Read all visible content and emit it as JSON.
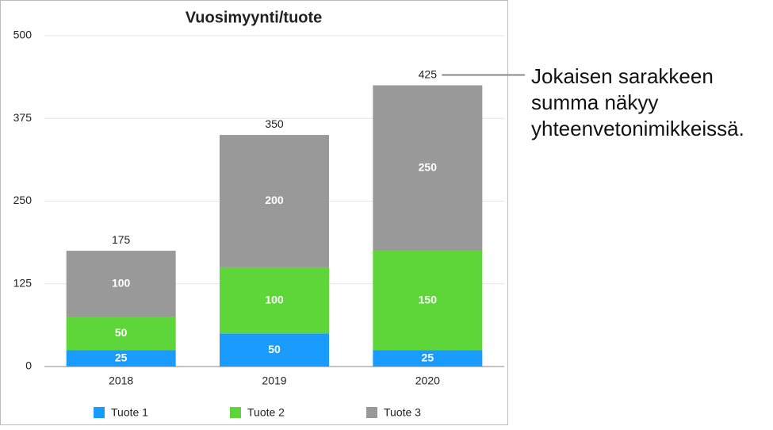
{
  "chart_data": {
    "type": "stacked_bar",
    "title": "Vuosimyynti/tuote",
    "categories": [
      "2018",
      "2019",
      "2020"
    ],
    "series": [
      {
        "name": "Tuote 1",
        "color": "#1a9cff",
        "values": [
          25,
          50,
          25
        ]
      },
      {
        "name": "Tuote 2",
        "color": "#5ed63a",
        "values": [
          50,
          100,
          150
        ]
      },
      {
        "name": "Tuote 3",
        "color": "#999999",
        "values": [
          100,
          200,
          250
        ]
      }
    ],
    "totals": [
      175,
      350,
      425
    ],
    "ylim": [
      0,
      500
    ],
    "yticks": [
      0,
      125,
      250,
      375,
      500
    ],
    "grid": true,
    "legend": "bottom",
    "annotation": [
      "Jokaisen sarakkeen",
      "summa näkyy",
      "yhteenvetonimikkeissä."
    ]
  }
}
